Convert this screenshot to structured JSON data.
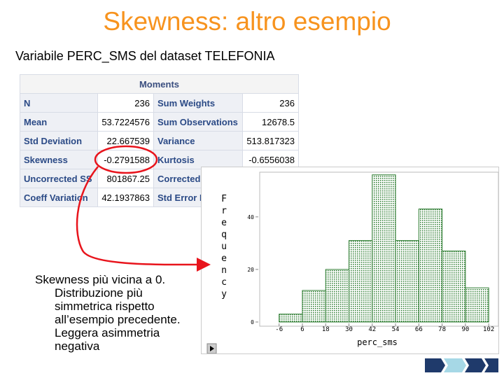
{
  "title": "Skewness: altro esempio",
  "subtitle": "Variabile PERC_SMS del dataset TELEFONIA",
  "table": {
    "header": "Moments",
    "rows": [
      [
        "N",
        "236",
        "Sum Weights",
        "236"
      ],
      [
        "Mean",
        "53.7224576",
        "Sum Observations",
        "12678.5"
      ],
      [
        "Std Deviation",
        "22.667539",
        "Variance",
        "513.817323"
      ],
      [
        "Skewness",
        "-0.2791588",
        "Kurtosis",
        "-0.6556038"
      ],
      [
        "Uncorrected SS",
        "801867.25",
        "Corrected SS"
      ],
      [
        "Coeff Variation",
        "42.1937863",
        "Std Error Mean"
      ]
    ]
  },
  "note": "Skewness più vicina a 0. Distribuzione più simmetrica rispetto all’esempio precedente. Leggera asimmetria negativa",
  "chart_data": {
    "type": "histogram",
    "x_label": "perc_sms",
    "y_label": "Frequency",
    "bins": [
      -6,
      6,
      18,
      30,
      42,
      54,
      66,
      78,
      90,
      102
    ],
    "values": [
      3,
      12,
      20,
      31,
      56,
      31,
      43,
      27,
      13
    ],
    "color": "#2e7d32",
    "xlim": [
      -16,
      107
    ],
    "xticks": [
      -6,
      6,
      18,
      30,
      42,
      54,
      66,
      78,
      90,
      102
    ],
    "ylim": [
      0,
      57
    ],
    "yticks": [
      0,
      20,
      40
    ]
  }
}
